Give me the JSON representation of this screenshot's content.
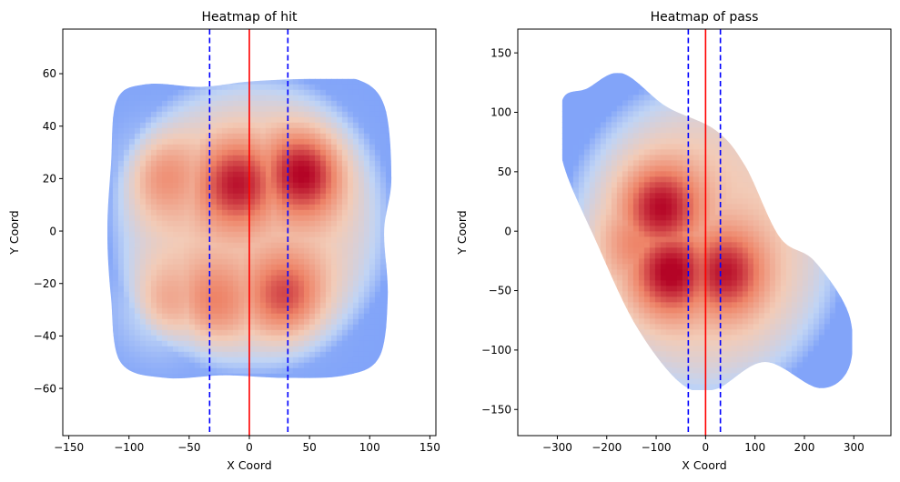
{
  "colors": {
    "axis": "#000000",
    "center_line": "#ff0000",
    "boundary_line": "#0000ff",
    "cmap": [
      "#3b4cc0",
      "#7b9ff9",
      "#c0d4f5",
      "#f2cbb7",
      "#ee8468",
      "#b40426"
    ]
  },
  "chart_data": [
    {
      "type": "heatmap",
      "title": "Heatmap of hit",
      "xlabel": "X Coord",
      "ylabel": "Y Coord",
      "xlim": [
        -155,
        155
      ],
      "ylim": [
        -78,
        77
      ],
      "xticks": [
        -150,
        -100,
        -50,
        0,
        50,
        100,
        150
      ],
      "yticks": [
        -60,
        -40,
        -20,
        0,
        20,
        40,
        60
      ],
      "xtick_labels": [
        "−150",
        "−100",
        "−50",
        "0",
        "50",
        "100",
        "150"
      ],
      "ytick_labels": [
        "−60",
        "−40",
        "−20",
        "0",
        "20",
        "40",
        "60"
      ],
      "density_outline": [
        [
          -110,
          50
        ],
        [
          -85,
          56
        ],
        [
          -40,
          55
        ],
        [
          0,
          57
        ],
        [
          45,
          58
        ],
        [
          88,
          58
        ],
        [
          112,
          48
        ],
        [
          118,
          20
        ],
        [
          112,
          0
        ],
        [
          115,
          -25
        ],
        [
          108,
          -48
        ],
        [
          80,
          -55
        ],
        [
          30,
          -56
        ],
        [
          -20,
          -55
        ],
        [
          -70,
          -56
        ],
        [
          -107,
          -50
        ],
        [
          -115,
          -25
        ],
        [
          -118,
          0
        ],
        [
          -115,
          25
        ]
      ],
      "density_peaks": [
        [
          45,
          22,
          1.0
        ],
        [
          -10,
          18,
          0.9
        ],
        [
          30,
          -25,
          0.75
        ],
        [
          -75,
          22,
          0.55
        ],
        [
          -75,
          -30,
          0.55
        ],
        [
          -30,
          -28,
          0.55
        ]
      ],
      "lines": [
        {
          "x": 0,
          "style": "solid",
          "color": "red"
        },
        {
          "x": -33,
          "style": "dashed",
          "color": "blue"
        },
        {
          "x": 32,
          "style": "dashed",
          "color": "blue"
        }
      ]
    },
    {
      "type": "heatmap",
      "title": "Heatmap of pass",
      "xlabel": "X Coord",
      "ylabel": "Y Coord",
      "xlim": [
        -380,
        375
      ],
      "ylim": [
        -172,
        170
      ],
      "xticks": [
        -300,
        -200,
        -100,
        0,
        100,
        200,
        300
      ],
      "yticks": [
        -150,
        -100,
        -50,
        0,
        50,
        100,
        150
      ],
      "xtick_labels": [
        "−300",
        "−200",
        "−100",
        "0",
        "100",
        "200",
        "300"
      ],
      "ytick_labels": [
        "−150",
        "−100",
        "−50",
        "0",
        "50",
        "100",
        "150"
      ],
      "density_outline": [
        [
          -240,
          120
        ],
        [
          -170,
          133
        ],
        [
          -80,
          105
        ],
        [
          20,
          85
        ],
        [
          80,
          55
        ],
        [
          150,
          -5
        ],
        [
          220,
          -25
        ],
        [
          290,
          -70
        ],
        [
          290,
          -115
        ],
        [
          230,
          -132
        ],
        [
          120,
          -110
        ],
        [
          20,
          -133
        ],
        [
          -50,
          -128
        ],
        [
          -140,
          -80
        ],
        [
          -220,
          -10
        ],
        [
          -290,
          60
        ],
        [
          -290,
          110
        ]
      ],
      "density_peaks": [
        [
          -90,
          20,
          0.95
        ],
        [
          -70,
          -35,
          1.0
        ],
        [
          40,
          -35,
          0.9
        ],
        [
          -140,
          -10,
          0.5
        ]
      ],
      "lines": [
        {
          "x": 0,
          "style": "solid",
          "color": "red"
        },
        {
          "x": -35,
          "style": "dashed",
          "color": "blue"
        },
        {
          "x": 30,
          "style": "dashed",
          "color": "blue"
        }
      ]
    }
  ]
}
